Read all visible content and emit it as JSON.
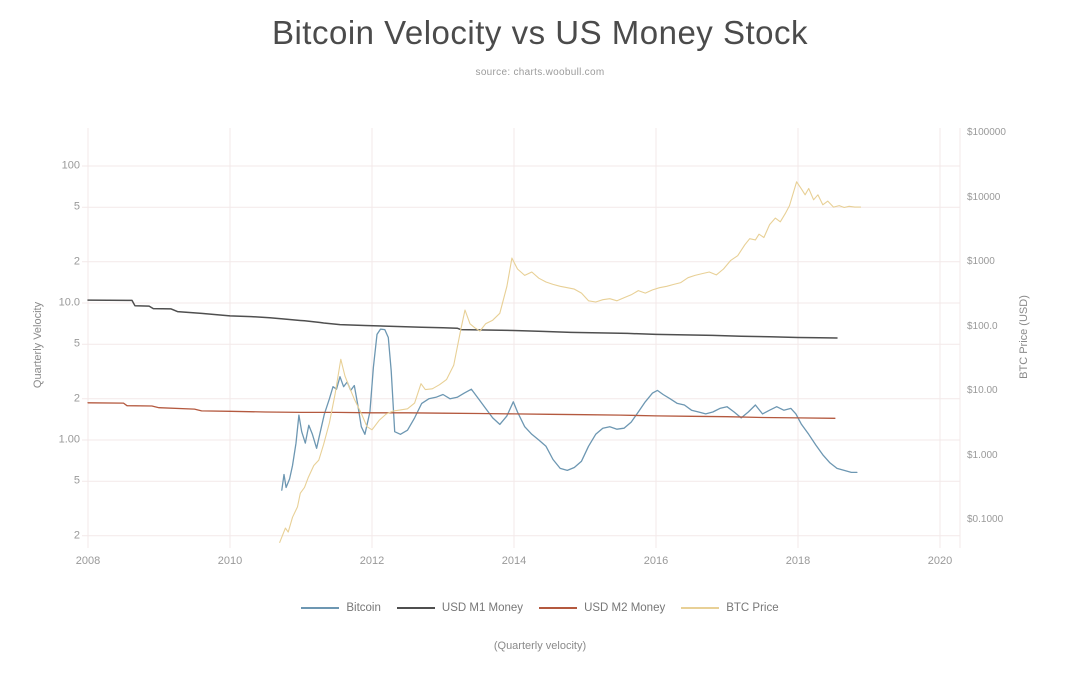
{
  "colors": {
    "background": "#ffffff",
    "title": "#4b4b4b",
    "source_text": "#9b9b9b",
    "tick_text": "#999999",
    "axis_title_text": "#8a8a8a",
    "legend_text": "#777777",
    "grid": "#f3e9e9"
  },
  "chart_data": {
    "type": "line",
    "title": "Bitcoin Velocity vs US Money Stock",
    "subtitle": "source: charts.woobull.com",
    "caption": "(Quarterly velocity)",
    "xlabel": "",
    "legend_position": "bottom",
    "grid": true,
    "x_axis": {
      "ticks": [
        2008,
        2010,
        2012,
        2014,
        2016,
        2018,
        2020
      ],
      "range": [
        2008,
        2020.3
      ]
    },
    "y_axis_left": {
      "label": "Quarterly Velocity",
      "scale": "log",
      "range": [
        0.18,
        130
      ],
      "ticks": [
        {
          "value": 100,
          "label": "100"
        },
        {
          "value": 50,
          "label": "5"
        },
        {
          "value": 20,
          "label": "2"
        },
        {
          "value": 10,
          "label": "10.0"
        },
        {
          "value": 5,
          "label": "5"
        },
        {
          "value": 2,
          "label": "2"
        },
        {
          "value": 1,
          "label": "1.00"
        },
        {
          "value": 0.5,
          "label": "5"
        },
        {
          "value": 0.2,
          "label": "2"
        }
      ]
    },
    "y_axis_right": {
      "label": "BTC Price (USD)",
      "scale": "log",
      "range": [
        0.03,
        120000
      ],
      "ticks": [
        {
          "value": 100000,
          "label": "$100000"
        },
        {
          "value": 10000,
          "label": "$10000"
        },
        {
          "value": 1000,
          "label": "$1000"
        },
        {
          "value": 100,
          "label": "$100.0"
        },
        {
          "value": 10,
          "label": "$10.00"
        },
        {
          "value": 1,
          "label": "$1.000"
        },
        {
          "value": 0.1,
          "label": "$0.1000"
        }
      ]
    },
    "series": [
      {
        "name": "Bitcoin",
        "axis": "left",
        "color": "#6d97b2",
        "stroke_width": 1.3,
        "points": [
          [
            2010.73,
            0.43
          ],
          [
            2010.76,
            0.56
          ],
          [
            2010.79,
            0.45
          ],
          [
            2010.84,
            0.52
          ],
          [
            2010.88,
            0.65
          ],
          [
            2010.93,
            0.95
          ],
          [
            2010.97,
            1.52
          ],
          [
            2011.01,
            1.15
          ],
          [
            2011.06,
            0.95
          ],
          [
            2011.11,
            1.28
          ],
          [
            2011.16,
            1.1
          ],
          [
            2011.22,
            0.87
          ],
          [
            2011.28,
            1.2
          ],
          [
            2011.33,
            1.55
          ],
          [
            2011.4,
            2.0
          ],
          [
            2011.45,
            2.45
          ],
          [
            2011.5,
            2.35
          ],
          [
            2011.55,
            2.9
          ],
          [
            2011.6,
            2.45
          ],
          [
            2011.65,
            2.65
          ],
          [
            2011.7,
            2.3
          ],
          [
            2011.75,
            2.5
          ],
          [
            2011.8,
            1.8
          ],
          [
            2011.85,
            1.25
          ],
          [
            2011.9,
            1.1
          ],
          [
            2011.97,
            1.6
          ],
          [
            2012.02,
            3.4
          ],
          [
            2012.07,
            5.9
          ],
          [
            2012.12,
            6.45
          ],
          [
            2012.18,
            6.4
          ],
          [
            2012.23,
            5.6
          ],
          [
            2012.27,
            3.2
          ],
          [
            2012.32,
            1.15
          ],
          [
            2012.4,
            1.1
          ],
          [
            2012.5,
            1.18
          ],
          [
            2012.6,
            1.45
          ],
          [
            2012.7,
            1.85
          ],
          [
            2012.8,
            2.0
          ],
          [
            2012.9,
            2.05
          ],
          [
            2013.0,
            2.15
          ],
          [
            2013.1,
            2.0
          ],
          [
            2013.2,
            2.05
          ],
          [
            2013.3,
            2.2
          ],
          [
            2013.4,
            2.35
          ],
          [
            2013.5,
            2.0
          ],
          [
            2013.6,
            1.7
          ],
          [
            2013.7,
            1.45
          ],
          [
            2013.8,
            1.3
          ],
          [
            2013.9,
            1.5
          ],
          [
            2013.99,
            1.9
          ],
          [
            2014.05,
            1.6
          ],
          [
            2014.15,
            1.25
          ],
          [
            2014.25,
            1.1
          ],
          [
            2014.35,
            1.0
          ],
          [
            2014.45,
            0.9
          ],
          [
            2014.55,
            0.72
          ],
          [
            2014.65,
            0.62
          ],
          [
            2014.75,
            0.6
          ],
          [
            2014.85,
            0.63
          ],
          [
            2014.95,
            0.7
          ],
          [
            2015.05,
            0.9
          ],
          [
            2015.15,
            1.1
          ],
          [
            2015.25,
            1.22
          ],
          [
            2015.35,
            1.25
          ],
          [
            2015.45,
            1.2
          ],
          [
            2015.55,
            1.22
          ],
          [
            2015.65,
            1.35
          ],
          [
            2015.75,
            1.6
          ],
          [
            2015.85,
            1.9
          ],
          [
            2015.95,
            2.2
          ],
          [
            2016.02,
            2.3
          ],
          [
            2016.1,
            2.15
          ],
          [
            2016.2,
            2.0
          ],
          [
            2016.3,
            1.85
          ],
          [
            2016.4,
            1.8
          ],
          [
            2016.5,
            1.65
          ],
          [
            2016.6,
            1.6
          ],
          [
            2016.7,
            1.55
          ],
          [
            2016.8,
            1.6
          ],
          [
            2016.9,
            1.7
          ],
          [
            2017.0,
            1.75
          ],
          [
            2017.1,
            1.6
          ],
          [
            2017.2,
            1.45
          ],
          [
            2017.3,
            1.6
          ],
          [
            2017.4,
            1.8
          ],
          [
            2017.5,
            1.55
          ],
          [
            2017.6,
            1.65
          ],
          [
            2017.7,
            1.75
          ],
          [
            2017.8,
            1.65
          ],
          [
            2017.9,
            1.7
          ],
          [
            2017.97,
            1.55
          ],
          [
            2018.05,
            1.3
          ],
          [
            2018.15,
            1.1
          ],
          [
            2018.25,
            0.92
          ],
          [
            2018.35,
            0.78
          ],
          [
            2018.45,
            0.68
          ],
          [
            2018.55,
            0.62
          ],
          [
            2018.65,
            0.6
          ],
          [
            2018.75,
            0.58
          ],
          [
            2018.83,
            0.58
          ]
        ]
      },
      {
        "name": "USD M1 Money",
        "axis": "left",
        "color": "#4f4f4f",
        "stroke_width": 1.5,
        "points": [
          [
            2008.0,
            10.5
          ],
          [
            2008.62,
            10.45
          ],
          [
            2008.66,
            9.55
          ],
          [
            2008.86,
            9.5
          ],
          [
            2008.92,
            9.1
          ],
          [
            2009.17,
            9.05
          ],
          [
            2009.26,
            8.65
          ],
          [
            2009.6,
            8.4
          ],
          [
            2010.0,
            8.05
          ],
          [
            2010.3,
            7.95
          ],
          [
            2010.56,
            7.8
          ],
          [
            2010.8,
            7.6
          ],
          [
            2010.99,
            7.45
          ],
          [
            2011.05,
            7.42
          ],
          [
            2011.27,
            7.2
          ],
          [
            2011.32,
            7.15
          ],
          [
            2011.55,
            6.95
          ],
          [
            2011.9,
            6.85
          ],
          [
            2012.3,
            6.75
          ],
          [
            2012.7,
            6.65
          ],
          [
            2013.0,
            6.6
          ],
          [
            2013.2,
            6.55
          ],
          [
            2013.25,
            6.4
          ],
          [
            2013.6,
            6.35
          ],
          [
            2014.0,
            6.3
          ],
          [
            2014.4,
            6.2
          ],
          [
            2014.8,
            6.1
          ],
          [
            2015.2,
            6.05
          ],
          [
            2015.6,
            6.0
          ],
          [
            2016.0,
            5.9
          ],
          [
            2016.4,
            5.85
          ],
          [
            2016.8,
            5.8
          ],
          [
            2017.2,
            5.72
          ],
          [
            2017.6,
            5.68
          ],
          [
            2018.0,
            5.6
          ],
          [
            2018.3,
            5.58
          ],
          [
            2018.55,
            5.55
          ]
        ]
      },
      {
        "name": "USD M2 Money",
        "axis": "left",
        "color": "#b4593f",
        "stroke_width": 1.3,
        "points": [
          [
            2008.0,
            1.87
          ],
          [
            2008.5,
            1.86
          ],
          [
            2008.55,
            1.78
          ],
          [
            2008.9,
            1.77
          ],
          [
            2009.0,
            1.72
          ],
          [
            2009.5,
            1.68
          ],
          [
            2009.6,
            1.63
          ],
          [
            2010.0,
            1.62
          ],
          [
            2010.5,
            1.6
          ],
          [
            2011.0,
            1.59
          ],
          [
            2011.5,
            1.59
          ],
          [
            2012.0,
            1.58
          ],
          [
            2012.5,
            1.58
          ],
          [
            2013.0,
            1.57
          ],
          [
            2013.5,
            1.56
          ],
          [
            2014.0,
            1.55
          ],
          [
            2014.5,
            1.54
          ],
          [
            2015.0,
            1.53
          ],
          [
            2015.5,
            1.52
          ],
          [
            2016.0,
            1.5
          ],
          [
            2016.5,
            1.49
          ],
          [
            2017.0,
            1.48
          ],
          [
            2017.5,
            1.46
          ],
          [
            2018.0,
            1.45
          ],
          [
            2018.52,
            1.44
          ]
        ]
      },
      {
        "name": "BTC Price",
        "axis": "right",
        "color": "#e8d096",
        "stroke_width": 1.1,
        "points": [
          [
            2010.7,
            0.045
          ],
          [
            2010.78,
            0.075
          ],
          [
            2010.82,
            0.065
          ],
          [
            2010.88,
            0.11
          ],
          [
            2010.95,
            0.16
          ],
          [
            2010.99,
            0.26
          ],
          [
            2011.05,
            0.32
          ],
          [
            2011.1,
            0.45
          ],
          [
            2011.18,
            0.7
          ],
          [
            2011.25,
            0.85
          ],
          [
            2011.32,
            1.5
          ],
          [
            2011.4,
            3.2
          ],
          [
            2011.48,
            9.0
          ],
          [
            2011.56,
            31
          ],
          [
            2011.62,
            17
          ],
          [
            2011.68,
            11.5
          ],
          [
            2011.75,
            7.5
          ],
          [
            2011.85,
            4.5
          ],
          [
            2011.93,
            2.8
          ],
          [
            2012.0,
            2.5
          ],
          [
            2012.1,
            3.5
          ],
          [
            2012.2,
            4.4
          ],
          [
            2012.3,
            4.9
          ],
          [
            2012.4,
            5.1
          ],
          [
            2012.5,
            5.3
          ],
          [
            2012.6,
            6.5
          ],
          [
            2012.69,
            13.0
          ],
          [
            2012.75,
            10.5
          ],
          [
            2012.85,
            10.8
          ],
          [
            2012.95,
            12.5
          ],
          [
            2013.05,
            15
          ],
          [
            2013.15,
            25
          ],
          [
            2013.25,
            90
          ],
          [
            2013.31,
            180
          ],
          [
            2013.38,
            110
          ],
          [
            2013.45,
            95
          ],
          [
            2013.52,
            85
          ],
          [
            2013.6,
            110
          ],
          [
            2013.7,
            125
          ],
          [
            2013.8,
            160
          ],
          [
            2013.9,
            420
          ],
          [
            2013.97,
            1150
          ],
          [
            2014.05,
            780
          ],
          [
            2014.15,
            620
          ],
          [
            2014.25,
            700
          ],
          [
            2014.35,
            560
          ],
          [
            2014.45,
            490
          ],
          [
            2014.55,
            450
          ],
          [
            2014.65,
            420
          ],
          [
            2014.75,
            400
          ],
          [
            2014.85,
            380
          ],
          [
            2014.95,
            330
          ],
          [
            2015.05,
            250
          ],
          [
            2015.15,
            240
          ],
          [
            2015.25,
            260
          ],
          [
            2015.35,
            270
          ],
          [
            2015.45,
            250
          ],
          [
            2015.55,
            280
          ],
          [
            2015.65,
            310
          ],
          [
            2015.75,
            360
          ],
          [
            2015.85,
            330
          ],
          [
            2015.95,
            370
          ],
          [
            2016.05,
            400
          ],
          [
            2016.15,
            420
          ],
          [
            2016.25,
            450
          ],
          [
            2016.35,
            480
          ],
          [
            2016.45,
            570
          ],
          [
            2016.55,
            620
          ],
          [
            2016.65,
            660
          ],
          [
            2016.75,
            700
          ],
          [
            2016.85,
            630
          ],
          [
            2016.95,
            780
          ],
          [
            2017.05,
            1050
          ],
          [
            2017.15,
            1250
          ],
          [
            2017.25,
            1850
          ],
          [
            2017.32,
            2300
          ],
          [
            2017.4,
            2200
          ],
          [
            2017.45,
            2700
          ],
          [
            2017.52,
            2400
          ],
          [
            2017.6,
            3800
          ],
          [
            2017.68,
            4800
          ],
          [
            2017.75,
            4200
          ],
          [
            2017.82,
            5600
          ],
          [
            2017.88,
            7500
          ],
          [
            2017.98,
            17500
          ],
          [
            2018.05,
            13500
          ],
          [
            2018.1,
            11000
          ],
          [
            2018.15,
            13800
          ],
          [
            2018.22,
            9200
          ],
          [
            2018.28,
            11000
          ],
          [
            2018.35,
            7700
          ],
          [
            2018.42,
            8800
          ],
          [
            2018.5,
            7100
          ],
          [
            2018.58,
            7500
          ],
          [
            2018.65,
            7000
          ],
          [
            2018.72,
            7300
          ],
          [
            2018.8,
            7100
          ],
          [
            2018.88,
            7100
          ]
        ]
      }
    ]
  }
}
